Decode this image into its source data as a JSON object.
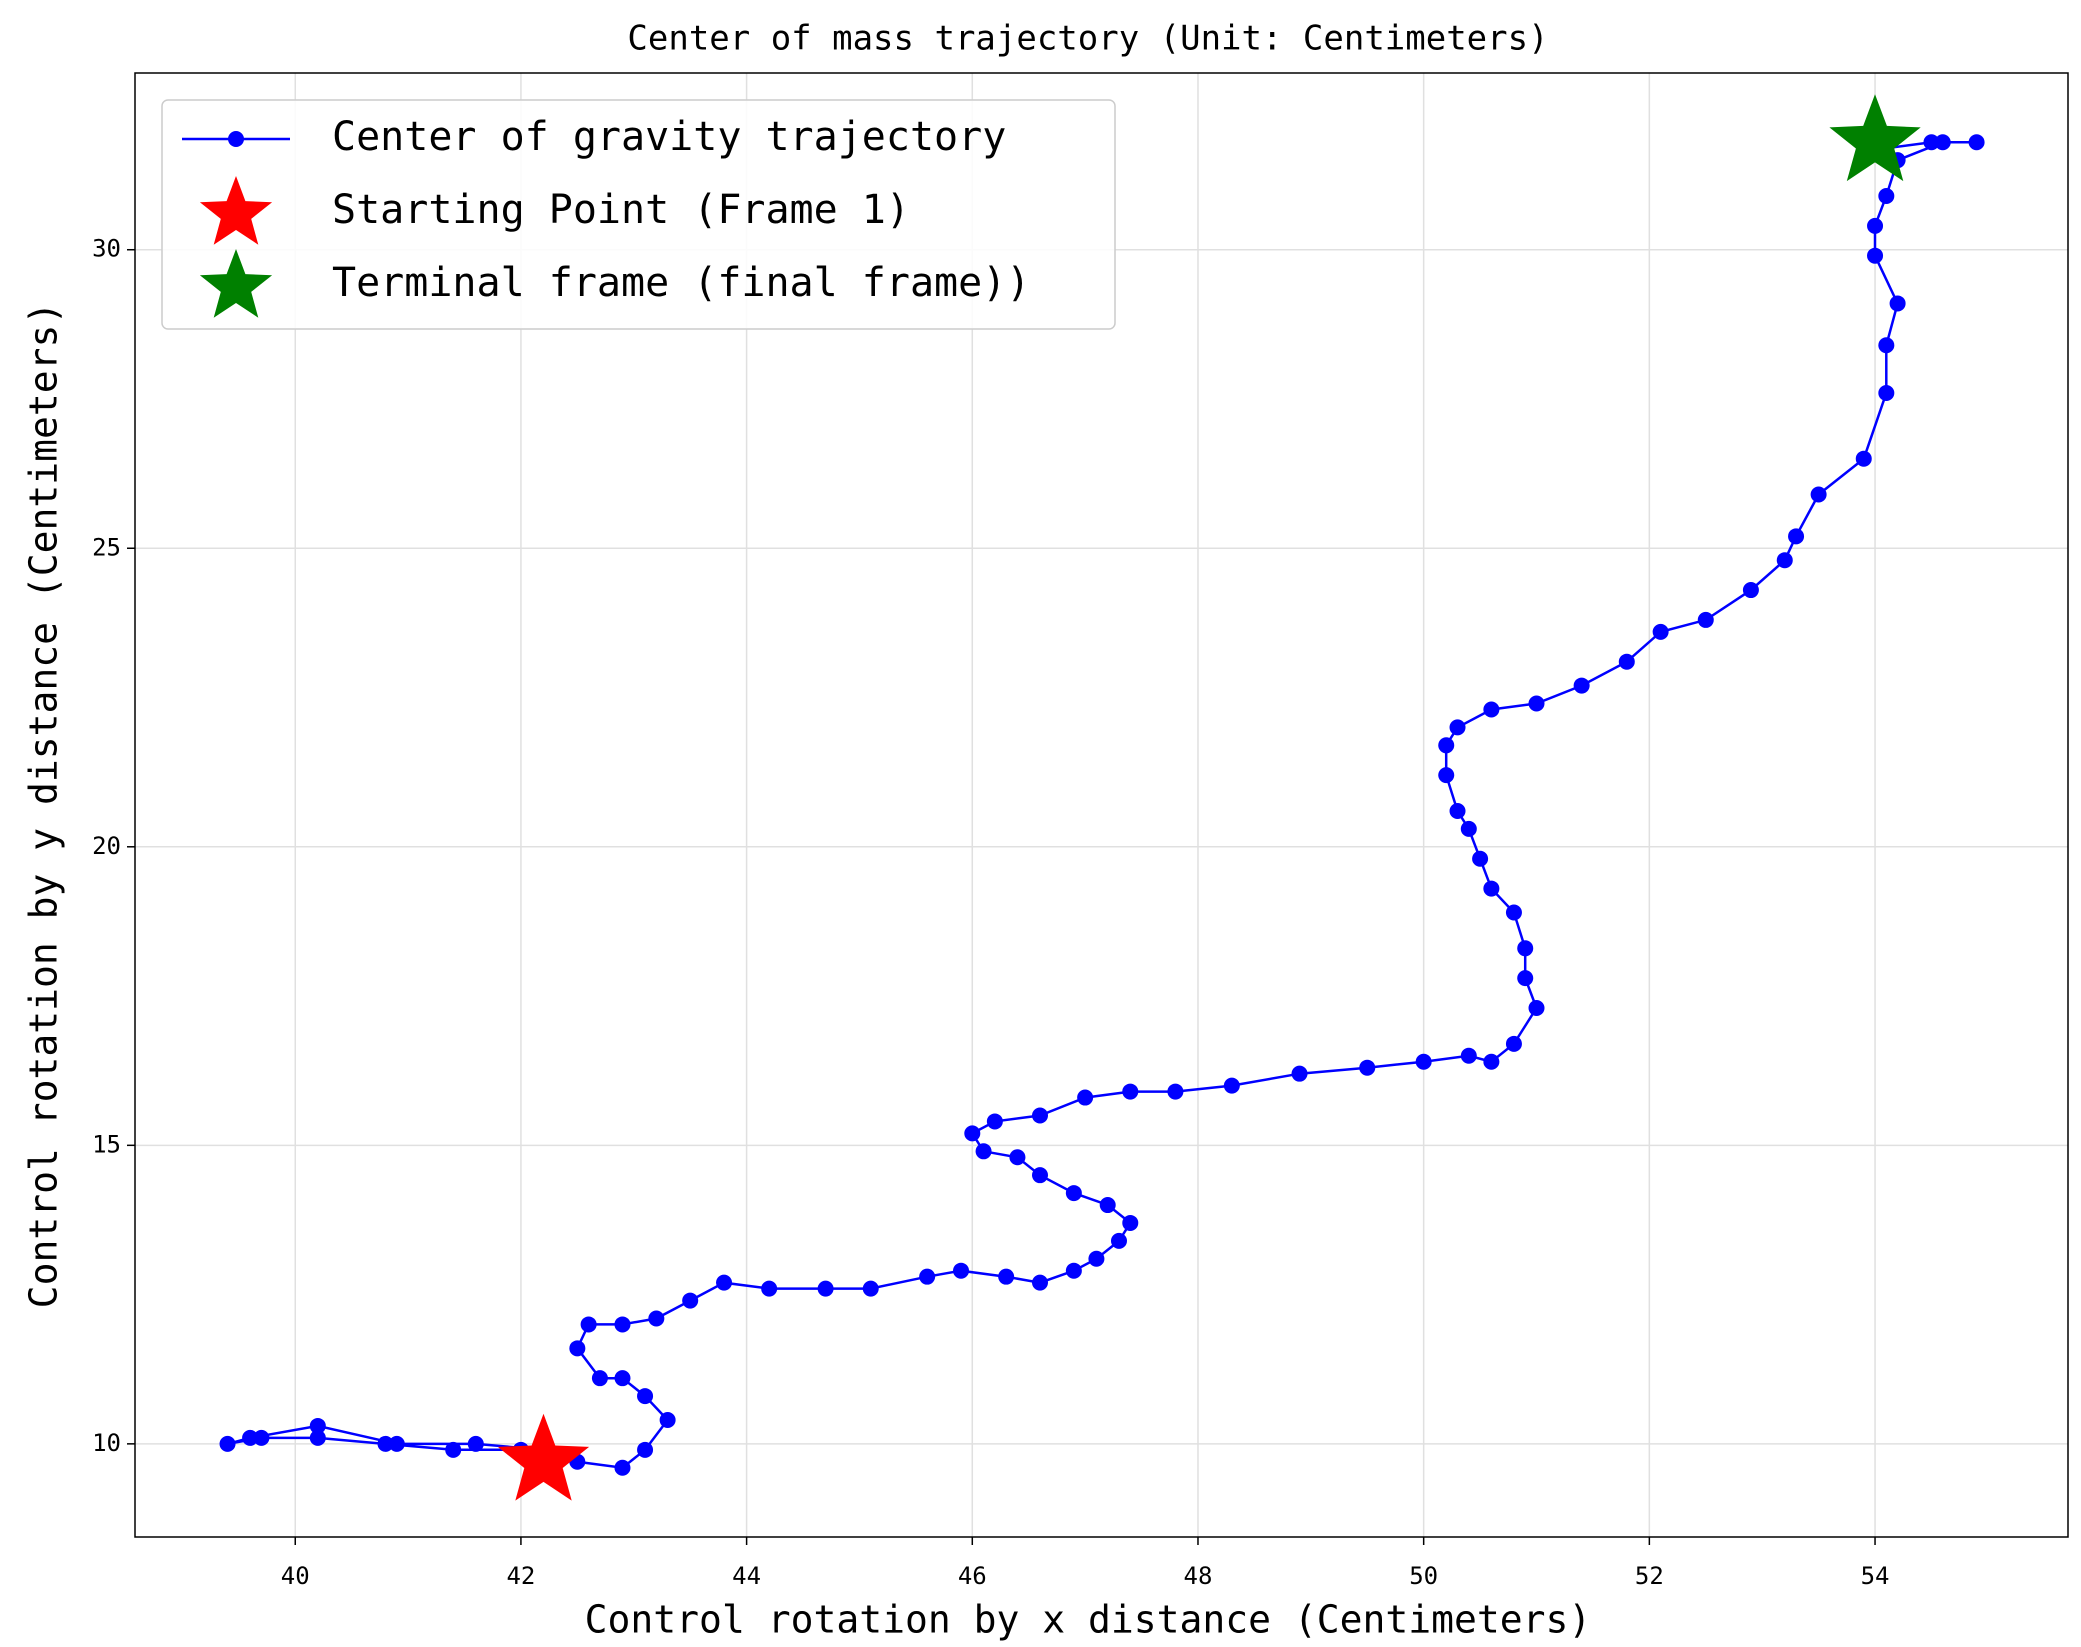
{
  "chart_data": {
    "type": "scatter",
    "title": "Center of mass trajectory (Unit: Centimeters)",
    "xlabel": "Control rotation by x distance (Centimeters)",
    "ylabel": "Control rotation by y distance (Centimeters)",
    "xlim": [
      38.58,
      55.71
    ],
    "ylim": [
      8.44,
      32.96
    ],
    "xticks": [
      40,
      42,
      44,
      46,
      48,
      50,
      52,
      54
    ],
    "yticks": [
      10,
      15,
      20,
      25,
      30
    ],
    "grid": true,
    "legend": "upper left",
    "series": [
      {
        "name": "Center of gravity trajectory",
        "color": "#0000ff",
        "marker": "circle",
        "line": true,
        "x": [
          42.2,
          42.0,
          41.4,
          40.8,
          40.2,
          39.7,
          39.4,
          39.6,
          40.2,
          40.9,
          41.6,
          42.2,
          42.5,
          42.9,
          43.1,
          43.3,
          43.1,
          42.9,
          42.7,
          42.5,
          42.6,
          42.9,
          43.2,
          43.5,
          43.8,
          44.2,
          44.7,
          45.1,
          45.6,
          45.9,
          46.3,
          46.6,
          46.9,
          47.1,
          47.3,
          47.4,
          47.2,
          46.9,
          46.6,
          46.4,
          46.1,
          46.0,
          46.2,
          46.6,
          47.0,
          47.4,
          47.8,
          48.3,
          48.9,
          49.5,
          50.0,
          50.4,
          50.6,
          50.8,
          51.0,
          50.9,
          50.9,
          50.8,
          50.6,
          50.5,
          50.4,
          50.3,
          50.2,
          50.2,
          50.3,
          50.6,
          51.0,
          51.4,
          51.8,
          52.1,
          52.5,
          52.9,
          53.2,
          53.3,
          53.5,
          53.9,
          54.1,
          54.1,
          54.2,
          54.0,
          54.0,
          54.1,
          54.2,
          54.6,
          54.9,
          54.5,
          54.1,
          54.0
        ],
        "y": [
          9.7,
          9.9,
          9.9,
          10.0,
          10.1,
          10.1,
          10.0,
          10.1,
          10.3,
          10.0,
          10.0,
          9.9,
          9.7,
          9.6,
          9.9,
          10.4,
          10.8,
          11.1,
          11.1,
          11.6,
          12.0,
          12.0,
          12.1,
          12.4,
          12.7,
          12.6,
          12.6,
          12.6,
          12.8,
          12.9,
          12.8,
          12.7,
          12.9,
          13.1,
          13.4,
          13.7,
          14.0,
          14.2,
          14.5,
          14.8,
          14.9,
          15.2,
          15.4,
          15.5,
          15.8,
          15.9,
          15.9,
          16.0,
          16.2,
          16.3,
          16.4,
          16.5,
          16.4,
          16.7,
          17.3,
          17.8,
          18.3,
          18.9,
          19.3,
          19.8,
          20.3,
          20.6,
          21.2,
          21.7,
          22.0,
          22.3,
          22.4,
          22.7,
          23.1,
          23.6,
          23.8,
          24.3,
          24.8,
          25.2,
          25.9,
          26.5,
          27.6,
          28.4,
          29.1,
          29.9,
          30.4,
          30.9,
          31.5,
          31.8,
          31.8,
          31.8,
          31.7,
          31.8
        ]
      },
      {
        "name": "Starting Point (Frame 1)",
        "color": "#ff0000",
        "marker": "star",
        "line": false,
        "x": [
          42.2
        ],
        "y": [
          9.7
        ]
      },
      {
        "name": "Terminal frame (final frame))",
        "color": "#008000",
        "marker": "star",
        "line": false,
        "x": [
          54.0
        ],
        "y": [
          31.8
        ]
      }
    ]
  }
}
